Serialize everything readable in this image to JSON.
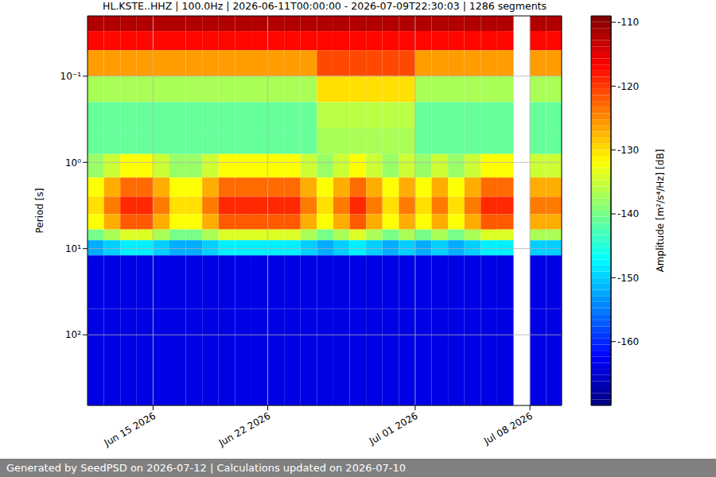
{
  "chart_data": {
    "type": "heatmap",
    "title": "HL.KSTE..HHZ | 100.0Hz | 2026-06-11T00:00:00 - 2026-07-09T22:30:03 | 1286 segments",
    "annotation": "Generated by SeedPSD on 2026-07-12 | Calculations updated on 2026-07-10",
    "y_label": "Period [s]",
    "log": "y",
    "grid": true,
    "xlim": [
      "2026-06-11T00:00:00",
      "2026-07-09T22:30:03"
    ],
    "xticks": [
      {
        "value": "2026-06-15",
        "label": "Jun 15 2026"
      },
      {
        "value": "2026-06-22",
        "label": "Jun 22 2026"
      },
      {
        "value": "2026-07-01",
        "label": "Jul 01 2026"
      },
      {
        "value": "2026-07-08",
        "label": "Jul 08 2026"
      }
    ],
    "ylim": [
      0.02,
      660
    ],
    "yticks": [
      {
        "value": 0.1,
        "label": "10⁻¹"
      },
      {
        "value": 1,
        "label": "10⁰"
      },
      {
        "value": 10,
        "label": "10¹"
      },
      {
        "value": 100,
        "label": "10²"
      }
    ],
    "x": [
      "2026-06-11",
      "2026-06-12",
      "2026-06-13",
      "2026-06-14",
      "2026-06-15",
      "2026-06-16",
      "2026-06-17",
      "2026-06-18",
      "2026-06-19",
      "2026-06-20",
      "2026-06-21",
      "2026-06-22",
      "2026-06-23",
      "2026-06-24",
      "2026-06-25",
      "2026-06-26",
      "2026-06-27",
      "2026-06-28",
      "2026-06-29",
      "2026-06-30",
      "2026-07-01",
      "2026-07-02",
      "2026-07-03",
      "2026-07-04",
      "2026-07-05",
      "2026-07-06",
      "2026-07-07",
      "2026-07-08",
      "2026-07-09"
    ],
    "y_edges": [
      0.02,
      0.03,
      0.05,
      0.1,
      0.2,
      0.4,
      0.8,
      1.5,
      2.5,
      4,
      6,
      8,
      12,
      50,
      660
    ],
    "cells": [
      [
        -112,
        -112,
        -112,
        -112,
        -112,
        -112,
        -112,
        -112,
        -112,
        -112,
        -112,
        -112,
        -112,
        -112,
        -112,
        -112,
        -112,
        -112,
        -112,
        -112,
        -112,
        -112,
        -112,
        -112,
        -112,
        -112,
        null,
        -112,
        -112
      ],
      [
        -117,
        -117,
        -117,
        -117,
        -117,
        -117,
        -117,
        -117,
        -117,
        -117,
        -117,
        -117,
        -117,
        -117,
        -117,
        -117,
        -117,
        -117,
        -117,
        -117,
        -117,
        -117,
        -117,
        -117,
        -117,
        -117,
        null,
        -117,
        -117
      ],
      [
        -126,
        -126,
        -126,
        -126,
        -126,
        -126,
        -126,
        -126,
        -126,
        -126,
        -126,
        -126,
        -126,
        -126,
        -121,
        -121,
        -121,
        -121,
        -121,
        -121,
        -126,
        -126,
        -126,
        -126,
        -126,
        -126,
        null,
        -126,
        -126
      ],
      [
        -137,
        -137,
        -137,
        -137,
        -137,
        -137,
        -137,
        -137,
        -137,
        -137,
        -137,
        -137,
        -137,
        -137,
        -130,
        -130,
        -130,
        -130,
        -130,
        -130,
        -137,
        -137,
        -137,
        -137,
        -137,
        -137,
        null,
        -137,
        -137
      ],
      [
        -141,
        -141,
        -141,
        -141,
        -141,
        -141,
        -141,
        -141,
        -141,
        -141,
        -141,
        -141,
        -141,
        -141,
        -136,
        -136,
        -136,
        -136,
        -136,
        -136,
        -141,
        -141,
        -141,
        -141,
        -141,
        -141,
        null,
        -141,
        -141
      ],
      [
        -141,
        -141,
        -141,
        -141,
        -141,
        -141,
        -141,
        -141,
        -141,
        -141,
        -141,
        -141,
        -141,
        -141,
        -137,
        -137,
        -137,
        -137,
        -137,
        -137,
        -141,
        -141,
        -141,
        -141,
        -141,
        -141,
        null,
        -141,
        -141
      ],
      [
        -138,
        -135,
        -132,
        -132,
        -135,
        -138,
        -138,
        -135,
        -132,
        -132,
        -132,
        -132,
        -132,
        -135,
        -138,
        -135,
        -132,
        -135,
        -138,
        -135,
        -138,
        -135,
        -138,
        -135,
        -132,
        -132,
        null,
        -135,
        -135
      ],
      [
        -132,
        -127,
        -123,
        -123,
        -127,
        -132,
        -132,
        -127,
        -123,
        -123,
        -123,
        -123,
        -123,
        -127,
        -132,
        -127,
        -123,
        -127,
        -132,
        -127,
        -132,
        -127,
        -132,
        -127,
        -123,
        -123,
        null,
        -127,
        -127
      ],
      [
        -130,
        -124,
        -119,
        -119,
        -124,
        -130,
        -130,
        -124,
        -119,
        -119,
        -119,
        -119,
        -119,
        -124,
        -130,
        -124,
        -119,
        -124,
        -130,
        -124,
        -130,
        -124,
        -130,
        -124,
        -119,
        -119,
        null,
        -124,
        -124
      ],
      [
        -132,
        -127,
        -122,
        -122,
        -127,
        -132,
        -132,
        -127,
        -122,
        -122,
        -122,
        -122,
        -122,
        -127,
        -132,
        -127,
        -122,
        -127,
        -132,
        -127,
        -132,
        -127,
        -132,
        -127,
        -122,
        -122,
        null,
        -127,
        -127
      ],
      [
        -140,
        -137,
        -134,
        -134,
        -137,
        -140,
        -140,
        -137,
        -134,
        -134,
        -134,
        -134,
        -134,
        -137,
        -140,
        -137,
        -134,
        -137,
        -140,
        -137,
        -140,
        -137,
        -140,
        -137,
        -134,
        -134,
        null,
        -137,
        -137
      ],
      [
        -152,
        -150,
        -148,
        -148,
        -150,
        -152,
        -152,
        -150,
        -148,
        -148,
        -148,
        -148,
        -148,
        -150,
        -152,
        -150,
        -148,
        -150,
        -152,
        -150,
        -152,
        -150,
        -152,
        -150,
        -148,
        -148,
        null,
        -150,
        -150
      ],
      [
        -164,
        -164,
        -164,
        -164,
        -164,
        -164,
        -164,
        -164,
        -164,
        -164,
        -164,
        -164,
        -164,
        -164,
        -164,
        -164,
        -164,
        -164,
        -164,
        -164,
        -164,
        -164,
        -164,
        -164,
        -164,
        -164,
        null,
        -164,
        -164
      ],
      [
        -164,
        -164,
        -164,
        -164,
        -164,
        -164,
        -164,
        -164,
        -164,
        -164,
        -164,
        -164,
        -164,
        -164,
        -164,
        -164,
        -164,
        -164,
        -164,
        -164,
        -164,
        -164,
        -164,
        -164,
        -164,
        -164,
        null,
        -164,
        -164
      ]
    ],
    "colorbar": {
      "label": "Amplitude [m²/s⁴/Hz] [dB]",
      "range": [
        -170,
        -109
      ],
      "ticks": [
        -160,
        -150,
        -140,
        -130,
        -120,
        -110
      ]
    }
  }
}
